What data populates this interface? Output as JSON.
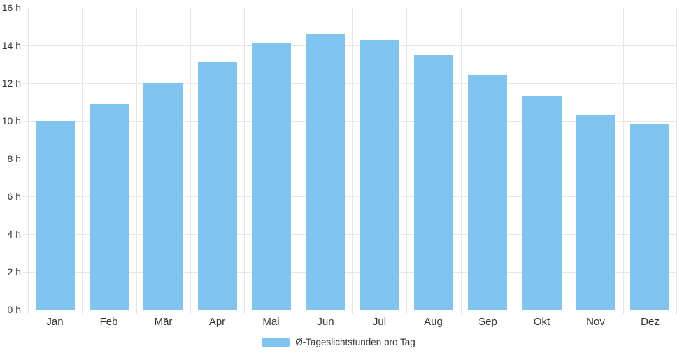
{
  "chart_data": {
    "type": "bar",
    "title": "",
    "xlabel": "",
    "ylabel": "",
    "categories": [
      "Jan",
      "Feb",
      "Mär",
      "Apr",
      "Mai",
      "Jun",
      "Jul",
      "Aug",
      "Sep",
      "Okt",
      "Nov",
      "Dez"
    ],
    "values": [
      10.0,
      10.9,
      12.0,
      13.1,
      14.1,
      14.6,
      14.3,
      13.5,
      12.4,
      11.3,
      10.3,
      9.8
    ],
    "series_name": "Ø-Tageslichtstunden pro Tag",
    "ylim": [
      0,
      16
    ],
    "y_tick_step": 2,
    "y_tick_labels": [
      "0 h",
      "2 h",
      "4 h",
      "6 h",
      "8 h",
      "10 h",
      "12 h",
      "14 h",
      "16 h"
    ],
    "grid": true,
    "legend_position": "bottom",
    "colors": {
      "bar": "#82C4F0",
      "grid": "#E6E6E6",
      "axis": "#C9C9C9",
      "text": "#333333"
    }
  },
  "legend": {
    "label": "Ø-Tageslichtstunden pro Tag"
  }
}
